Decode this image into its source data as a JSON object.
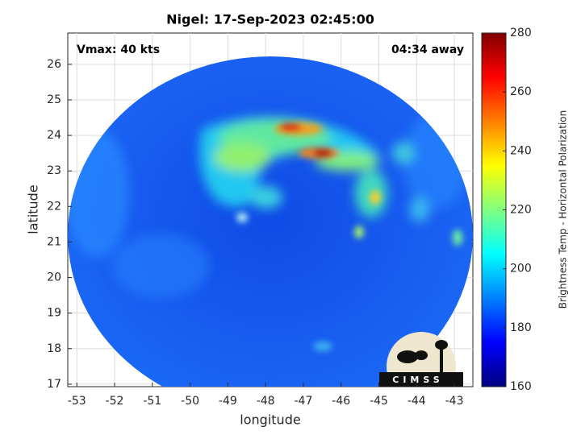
{
  "chart_data": {
    "type": "image",
    "title": "Nigel: 17-Sep-2023 02:45:00",
    "xlabel": "longitude",
    "ylabel": "latitude",
    "xlim": [
      -53.24,
      -42.51
    ],
    "xticks": [
      -53,
      -52,
      -51,
      -50,
      -49,
      -48,
      -47,
      -46,
      -45,
      -44,
      -43
    ],
    "ylim": [
      16.93,
      26.88
    ],
    "yticks": [
      17,
      18,
      19,
      20,
      21,
      22,
      23,
      24,
      25,
      26
    ],
    "grid": true,
    "annotations": [
      "Vmax: 40 kts",
      "04:34 away"
    ],
    "colorbar": {
      "label": "Brightness Temp - Horizontal Polarization",
      "lim": [
        160,
        280
      ],
      "ticks": [
        160,
        180,
        200,
        220,
        240,
        260,
        280
      ],
      "colormap": "jet"
    },
    "logo": "CIMSS"
  }
}
